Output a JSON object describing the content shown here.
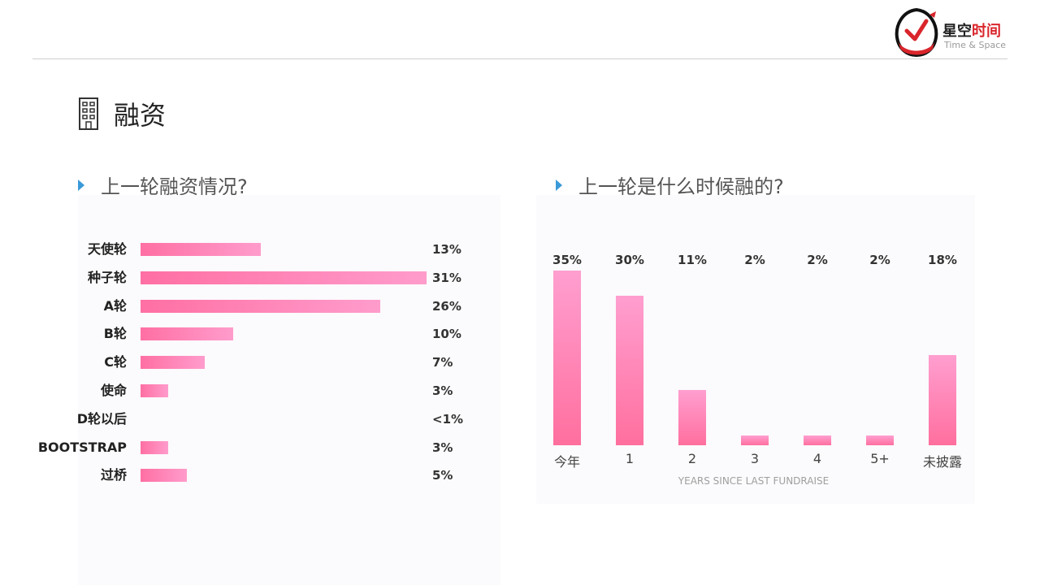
{
  "header": {
    "brand_cn_main": "星空",
    "brand_cn_accent": "时间",
    "brand_en": "Time & Space"
  },
  "page": {
    "title": "融资",
    "title_icon": "building-icon"
  },
  "sections": {
    "left_heading": "上一轮融资情况?",
    "right_heading": "上一轮是什么时候融的?",
    "heading_icon": "triangle-right-icon",
    "heading_icon_color": "#3a9ad9"
  },
  "colors": {
    "bar_start": "#ff6fa3",
    "bar_end": "#ff9ccc"
  },
  "chart_data": [
    {
      "type": "bar",
      "orientation": "horizontal",
      "title": "上一轮融资情况?",
      "categories": [
        "天使轮",
        "种子轮",
        "A轮",
        "B轮",
        "C轮",
        "使命",
        "D轮以后",
        "BOOTSTRAP",
        "过桥"
      ],
      "values": [
        13,
        31,
        26,
        10,
        7,
        3,
        0.5,
        3,
        5
      ],
      "value_labels": [
        "13%",
        "31%",
        "26%",
        "10%",
        "7%",
        "3%",
        "<1%",
        "3%",
        "5%"
      ],
      "unit": "%",
      "xlim": [
        0,
        31
      ],
      "grid": false,
      "legend": "none"
    },
    {
      "type": "bar",
      "orientation": "vertical",
      "title": "上一轮是什么时候融的?",
      "categories": [
        "今年",
        "1",
        "2",
        "3",
        "4",
        "5+",
        "未披露"
      ],
      "values": [
        35,
        30,
        11,
        2,
        2,
        2,
        18
      ],
      "value_labels": [
        "35%",
        "30%",
        "11%",
        "2%",
        "2%",
        "2%",
        "18%"
      ],
      "xlabel": "YEARS SINCE LAST FUNDRAISE",
      "ylabel": "",
      "unit": "%",
      "ylim": [
        0,
        35
      ],
      "grid": false,
      "legend": "none"
    }
  ]
}
